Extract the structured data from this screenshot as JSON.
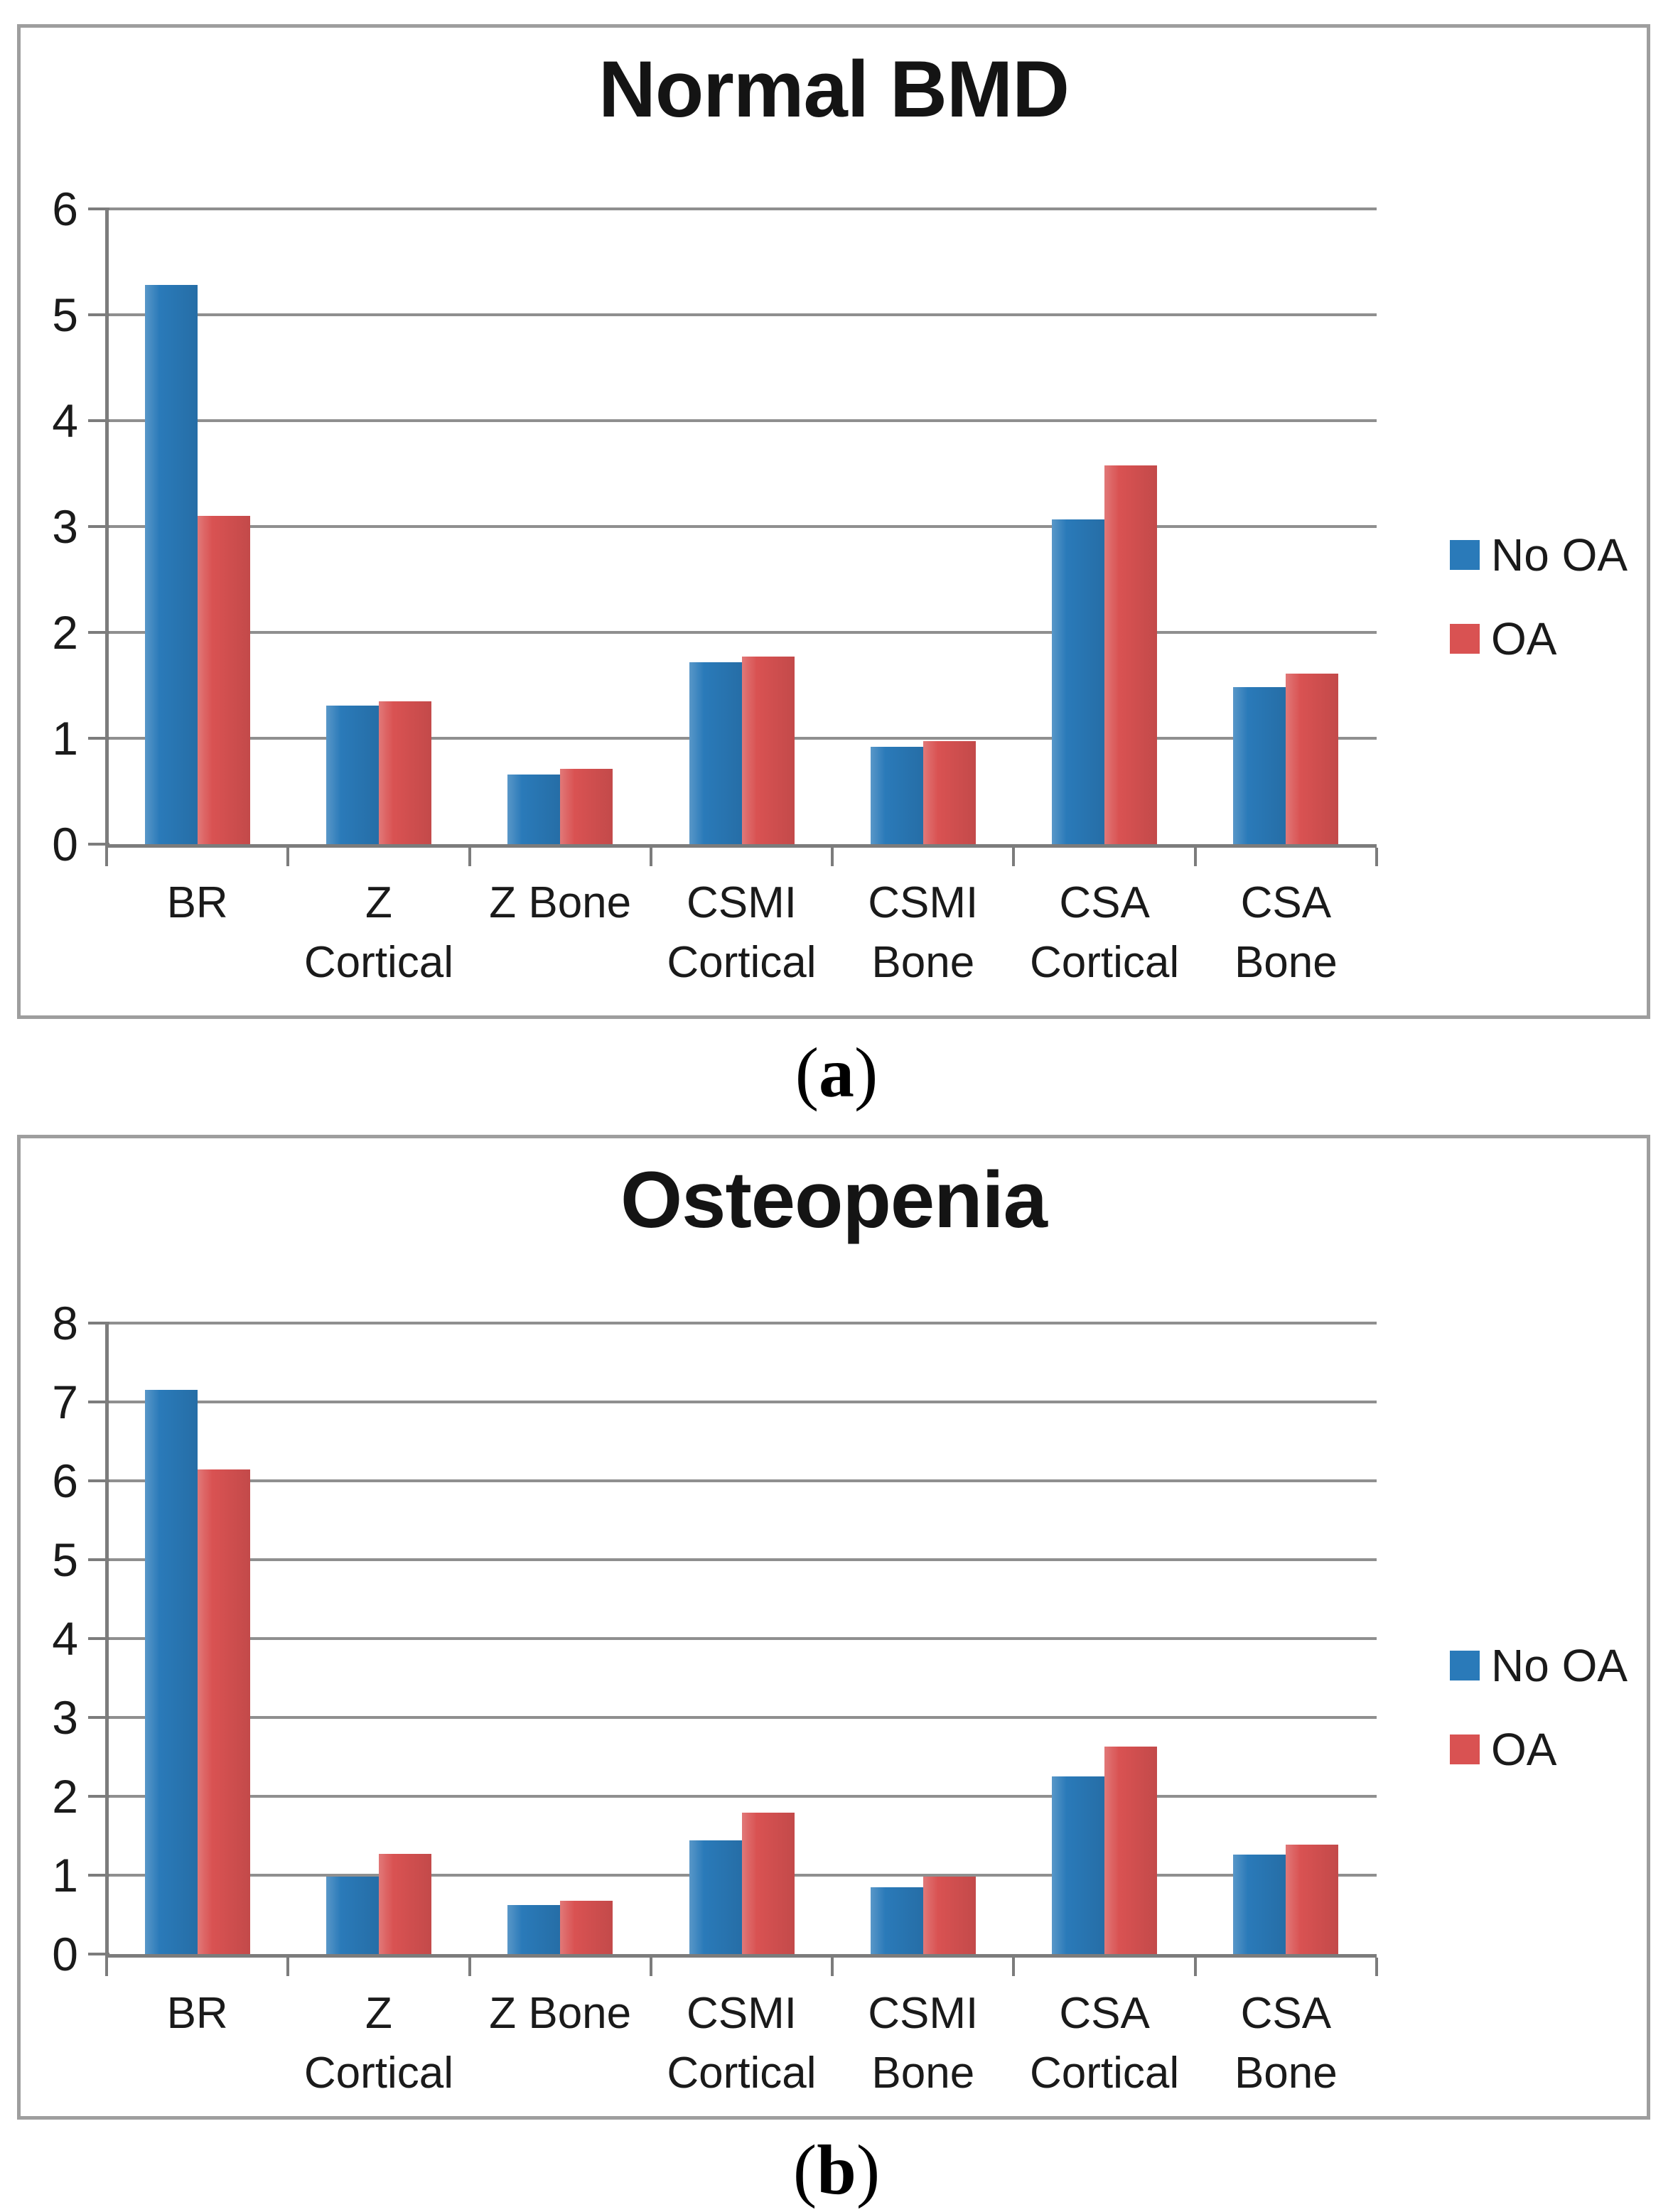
{
  "figure": {
    "captions": [
      {
        "open": "(",
        "letter": "a",
        "close": ")"
      },
      {
        "open": "(",
        "letter": "b",
        "close": ")"
      }
    ]
  },
  "palette": {
    "no_oa_blue": "#2A7AB9",
    "oa_red": "#D95252",
    "gridline_gray": "#8F8F8F",
    "axis_gray": "#7C7C7C",
    "panel_border_gray": "#9E9E9E",
    "text_black": "#1A1A1A"
  },
  "chart_data": [
    {
      "type": "bar",
      "title": "Normal BMD",
      "categories": [
        [
          "BR"
        ],
        [
          "Z Cortical"
        ],
        [
          "Z Bone"
        ],
        [
          "CSMI",
          "Cortical"
        ],
        [
          "CSMI",
          "Bone"
        ],
        [
          "CSA",
          "Cortical"
        ],
        [
          "CSA Bone"
        ]
      ],
      "series": [
        {
          "name": "No OA",
          "color": "#2A7AB9",
          "values": [
            5.28,
            1.31,
            0.66,
            1.72,
            0.92,
            3.07,
            1.48
          ]
        },
        {
          "name": "OA",
          "color": "#D95252",
          "values": [
            3.1,
            1.35,
            0.71,
            1.77,
            0.97,
            3.58,
            1.61
          ]
        }
      ],
      "xlabel": "",
      "ylabel": "",
      "ylim": [
        0,
        6
      ],
      "yticks": [
        0,
        1,
        2,
        3,
        4,
        5,
        6
      ],
      "grid": true,
      "legend_position": "right"
    },
    {
      "type": "bar",
      "title": "Osteopenia",
      "categories": [
        [
          "BR"
        ],
        [
          "Z Cortical"
        ],
        [
          "Z Bone"
        ],
        [
          "CSMI",
          "Cortical"
        ],
        [
          "CSMI",
          "Bone"
        ],
        [
          "CSA",
          "Cortical"
        ],
        [
          "CSA Bone"
        ]
      ],
      "series": [
        {
          "name": "No OA",
          "color": "#2A7AB9",
          "values": [
            7.15,
            0.98,
            0.62,
            1.44,
            0.85,
            2.25,
            1.26
          ]
        },
        {
          "name": "OA",
          "color": "#D95252",
          "values": [
            6.14,
            1.27,
            0.68,
            1.79,
            0.98,
            2.63,
            1.39
          ]
        }
      ],
      "xlabel": "",
      "ylabel": "",
      "ylim": [
        0,
        8
      ],
      "yticks": [
        0,
        1,
        2,
        3,
        4,
        5,
        6,
        7,
        8
      ],
      "grid": true,
      "legend_position": "right"
    }
  ]
}
